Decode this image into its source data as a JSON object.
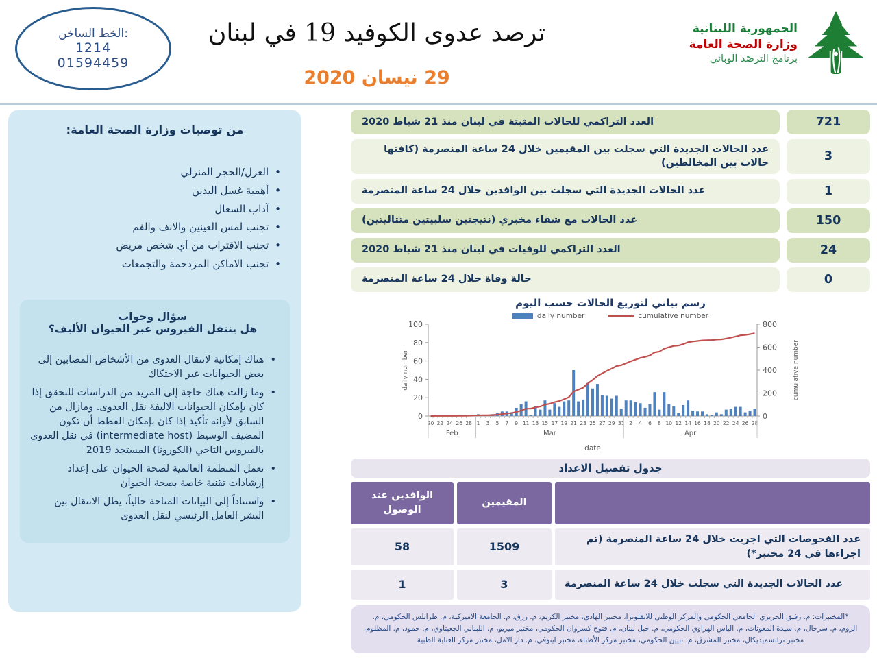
{
  "header": {
    "hotline": {
      "label": "الخط الساخن:",
      "short_number": "1214",
      "long_number": "01594459"
    },
    "title": "ترصد عدوى الكوفيد 19 في لبنان",
    "date": "29 نيسان 2020",
    "logo": {
      "line1": "الجمهورية اللبنانية",
      "line2": "وزارة الصحة العامة",
      "line3": "برنامج الترصّد الوبائي",
      "icon": "cedar-tree-icon",
      "colors": {
        "green": "#1b7f3b",
        "red": "#c00000"
      }
    }
  },
  "sidebar": {
    "recommendations": {
      "title": "من توصيات وزارة الصحة العامة:",
      "items": [
        "العزل/الحجر المنزلي",
        "أهمية غسل اليدين",
        "آداب السعال",
        "تجنب لمس العينين والانف والفم",
        "تجنب الاقتراب من أي شخص مريض",
        "تجنب الاماكن المزدحمة والتجمعات"
      ]
    },
    "qa": {
      "title_line1": "سؤال وجواب",
      "title_line2": "هل ينتقل الفيروس عبر الحيوان الأليف؟",
      "items": [
        "هناك إمكانية لانتقال العدوى من الأشخاص المصابين إلى بعض الحيوانات عبر الاحتكاك",
        "وما زالت هناك حاجة إلى المزيد من الدراسات للتحقق إذا كان بإمكان الحيوانات الاليفة نقل العدوى. ومازال من السابق لأوانه تأكيد إذا كان بإمكان القطط أن تكون المضيف الوسيط (intermediate host) في نقل العدوى بالفيروس التاجي (الكورونا) المستجد 2019",
        "تعمل المنظمة العالمية لصحة الحيوان على إعداد إرشادات تقنية خاصة بصحة الحيوان",
        "واستناداً إلى البيانات المتاحة حالياً، يظل الانتقال بين البشر العامل الرئيسي لنقل العدوى"
      ]
    }
  },
  "stats": [
    {
      "value": "721",
      "label": "العدد التراكمي للحالات المثبتة في لبنان منذ 21 شباط 2020",
      "tone": "dark"
    },
    {
      "value": "3",
      "label": "عدد الحالات الجديدة التي سجلت بين المقيمين خلال 24 ساعة المنصرمة (كافتها حالات بين المخالطين)",
      "tone": "light"
    },
    {
      "value": "1",
      "label": "عدد الحالات الجديدة التي سجلت بين الوافدين خلال 24 ساعة المنصرمة",
      "tone": "light"
    },
    {
      "value": "150",
      "label": "عدد الحالات مع شفاء مخبري (نتيجتين سلبيتين متتاليتين)",
      "tone": "dark"
    },
    {
      "value": "24",
      "label": "العدد التراكمي للوفيات في لبنان منذ 21 شباط 2020",
      "tone": "dark"
    },
    {
      "value": "0",
      "label": "حالة وفاة خلال 24 ساعة المنصرمة",
      "tone": "light"
    }
  ],
  "chart_data": {
    "type": "bar+line",
    "title": "رسم بياني لتوزيع الحالات حسب اليوم",
    "xlabel": "date",
    "legend_position": "top",
    "grid": false,
    "x_tick_labels_every": 2,
    "months": [
      {
        "label": "Feb",
        "start_day": 20,
        "daily": [
          0,
          1,
          0,
          0,
          0,
          0,
          1,
          0,
          1,
          1
        ]
      },
      {
        "label": "Mar",
        "start_day": 1,
        "daily": [
          2,
          1,
          0,
          2,
          3,
          5,
          5,
          4,
          9,
          13,
          16,
          1,
          11,
          7,
          17,
          7,
          14,
          10,
          16,
          17,
          50,
          16,
          18,
          36,
          30,
          35,
          23,
          22,
          19,
          22,
          8
        ]
      },
      {
        "label": "Apr",
        "start_day": 1,
        "daily": [
          17,
          17,
          15,
          14,
          9,
          13,
          26,
          7,
          26,
          13,
          11,
          3,
          12,
          17,
          6,
          5,
          5,
          2,
          1,
          4,
          2,
          7,
          8,
          10,
          10,
          4,
          6,
          8
        ]
      }
    ],
    "series": [
      {
        "name": "daily number",
        "type": "bar",
        "color": "#4f81bd",
        "axis": "left"
      },
      {
        "name": "cumulative number",
        "type": "line",
        "color": "#c0504d",
        "axis": "right",
        "note": "cumulative sum of daily values, ends at 721"
      }
    ],
    "left_axis": {
      "label": "daily number",
      "min": 0,
      "max": 100,
      "tick_step": 20
    },
    "right_axis": {
      "label": "cumulative number",
      "min": 0,
      "max": 800,
      "tick_step": 200
    }
  },
  "table": {
    "title": "جدول تفصيل الاعداد",
    "columns": {
      "arrivals": "الوافدين عند الوصول",
      "residents": "المقيمين"
    },
    "rows": [
      {
        "label": "عدد الفحوصات التي اجريت خلال 24 ساعة المنصرمة (تم اجراءها في 24 مختبر*)",
        "residents": "1509",
        "arrivals": "58"
      },
      {
        "label": "عدد الحالات الجديدة التي سجلت خلال 24 ساعة المنصرمة",
        "residents": "3",
        "arrivals": "1"
      }
    ]
  },
  "footnote": "*المختبرات: م. رفيق الحريري الجامعي الحكومي والمركز الوطني للانفلونزا، مختبر الهادي، مختبر الكريم، م. رزق، م. الجامعة الاميركية، م. طرابلس الحكومي، م. الروم، م. سرحال، م. سيدة المعونات، م. الياس الهراوي الحكومي، م. جبل لبنان، م. فتوح كسروان الحكومي، مختبر ميريو، م. اللبناني الجعيتاوي، م. حمود، م. المظلوم، مختبر ترانسميديكال، مختبر المشرق، م. تبيين الحكومي، مختبر مركز الأطباء، مختبر اينوفي، م. دار الامل، مختبر مركز العناية الطبية"
}
